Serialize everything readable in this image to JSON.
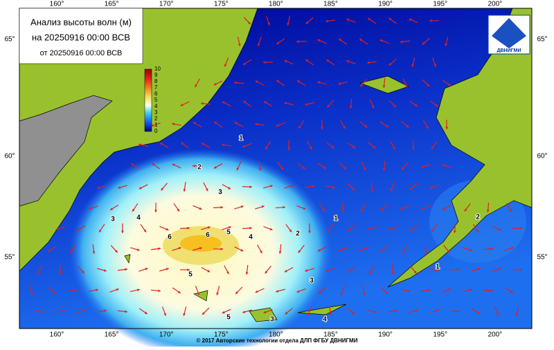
{
  "header": {
    "title": "Анализ высоты волн (м)",
    "valid": "на 20250916 00:00 ВСВ",
    "issued": "от 20250916 00:00 ВСВ"
  },
  "logo": "ДВНИГМИ",
  "map": {
    "lon_labels": [
      "160°",
      "165°",
      "170°",
      "175°",
      "180°",
      "185°",
      "190°",
      "195°",
      "200°"
    ],
    "lat_labels": [
      "65°",
      "60°",
      "55°"
    ],
    "colorbar_ticks": [
      0,
      1,
      2,
      3,
      4,
      5,
      6,
      7,
      8,
      9,
      10
    ],
    "contour_labels": [
      1,
      2,
      3,
      3,
      4,
      6,
      6,
      5,
      4,
      2,
      1,
      2,
      1,
      5,
      3,
      3,
      5,
      4
    ]
  },
  "footer": "© 2017 Авторские технологии отдела ДЛП ФГБУ ДВНИГМИ"
}
